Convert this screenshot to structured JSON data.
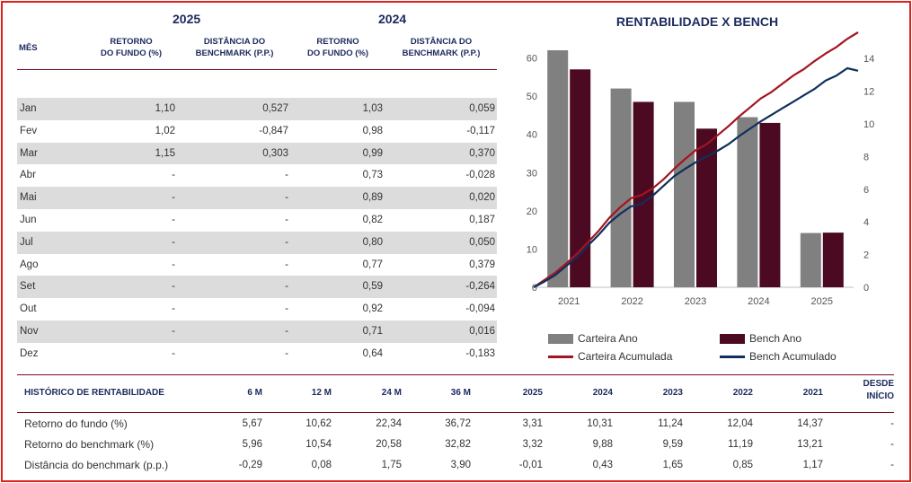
{
  "monthly_table": {
    "year_headers": [
      "2025",
      "2024"
    ],
    "col_headers": {
      "mes": "MÊS",
      "ret_1": [
        "RETORNO",
        "DO FUNDO (%)"
      ],
      "dist_1": [
        "DISTÂNCIA DO",
        "BENCHMARK (P.P.)"
      ],
      "ret_2": [
        "RETORNO",
        "DO FUNDO (%)"
      ],
      "dist_2": [
        "DISTÂNCIA DO",
        "BENCHMARK (P.P.)"
      ]
    },
    "rows": [
      {
        "month": "Jan",
        "r2025": "1,10",
        "d2025": "0,527",
        "r2024": "1,03",
        "d2024": "0,059"
      },
      {
        "month": "Fev",
        "r2025": "1,02",
        "d2025": "-0,847",
        "r2024": "0,98",
        "d2024": "-0,117"
      },
      {
        "month": "Mar",
        "r2025": "1,15",
        "d2025": "0,303",
        "r2024": "0,99",
        "d2024": "0,370"
      },
      {
        "month": "Abr",
        "r2025": "-",
        "d2025": "-",
        "r2024": "0,73",
        "d2024": "-0,028"
      },
      {
        "month": "Mai",
        "r2025": "-",
        "d2025": "-",
        "r2024": "0,89",
        "d2024": "0,020"
      },
      {
        "month": "Jun",
        "r2025": "-",
        "d2025": "-",
        "r2024": "0,82",
        "d2024": "0,187"
      },
      {
        "month": "Jul",
        "r2025": "-",
        "d2025": "-",
        "r2024": "0,80",
        "d2024": "0,050"
      },
      {
        "month": "Ago",
        "r2025": "-",
        "d2025": "-",
        "r2024": "0,77",
        "d2024": "0,379"
      },
      {
        "month": "Set",
        "r2025": "-",
        "d2025": "-",
        "r2024": "0,59",
        "d2024": "-0,264"
      },
      {
        "month": "Out",
        "r2025": "-",
        "d2025": "-",
        "r2024": "0,92",
        "d2024": "-0,094"
      },
      {
        "month": "Nov",
        "r2025": "-",
        "d2025": "-",
        "r2024": "0,71",
        "d2024": "0,016"
      },
      {
        "month": "Dez",
        "r2025": "-",
        "d2025": "-",
        "r2024": "0,64",
        "d2024": "-0,183"
      }
    ]
  },
  "chart_data": {
    "type": "bar",
    "title": "RENTABILIDADE X BENCH",
    "categories": [
      "2021",
      "2022",
      "2023",
      "2024",
      "2025"
    ],
    "y_left": {
      "ticks": [
        0,
        10,
        20,
        30,
        40,
        50,
        60
      ],
      "range": [
        0,
        62
      ]
    },
    "y_right": {
      "ticks": [
        0,
        2,
        4,
        6,
        8,
        10,
        12,
        14
      ],
      "range": [
        0,
        14.5
      ]
    },
    "series": [
      {
        "name": "Carteira Ano",
        "type": "bar",
        "axis": "left",
        "color": "#808080",
        "values": [
          62,
          52,
          48.5,
          44.5,
          14.2
        ]
      },
      {
        "name": "Bench Ano",
        "type": "bar",
        "axis": "left",
        "color": "#4b0a22",
        "values": [
          57,
          48.5,
          41.5,
          43,
          14.3
        ]
      },
      {
        "name": "Carteira Acumulada",
        "type": "line",
        "axis": "right",
        "color": "#a31421",
        "x": [
          0,
          0.5,
          1,
          1.5,
          2,
          2.5,
          3,
          3.5,
          4,
          4.5,
          5,
          5.5,
          6,
          6.5,
          7,
          7.5,
          8,
          8.5,
          9,
          9.5,
          10,
          10.5,
          11,
          11.5,
          12,
          12.5,
          13,
          13.5,
          14,
          14.5,
          15
        ],
        "values": [
          0,
          0.45,
          0.9,
          1.45,
          2.05,
          2.75,
          3.45,
          4.25,
          4.9,
          5.45,
          5.65,
          6.05,
          6.6,
          7.25,
          7.85,
          8.4,
          8.75,
          9.3,
          9.85,
          10.45,
          11.0,
          11.55,
          11.95,
          12.45,
          12.95,
          13.35,
          13.85,
          14.3,
          14.7,
          15.2,
          15.6
        ]
      },
      {
        "name": "Bench Acumulado",
        "type": "line",
        "axis": "right",
        "color": "#0f2f5c",
        "x": [
          0,
          0.5,
          1,
          1.5,
          2,
          2.5,
          3,
          3.5,
          4,
          4.5,
          5,
          5.5,
          6,
          6.5,
          7,
          7.5,
          8,
          8.5,
          9,
          9.5,
          10,
          10.5,
          11,
          11.5,
          12,
          12.5,
          13,
          13.5,
          14,
          14.5,
          15
        ],
        "values": [
          0,
          0.35,
          0.75,
          1.3,
          1.85,
          2.55,
          3.2,
          3.95,
          4.5,
          4.95,
          5.1,
          5.6,
          6.2,
          6.8,
          7.25,
          7.65,
          8.0,
          8.35,
          8.75,
          9.25,
          9.7,
          10.15,
          10.55,
          10.95,
          11.35,
          11.75,
          12.15,
          12.65,
          12.95,
          13.4,
          13.25
        ]
      }
    ],
    "x_positions_note_units": "bar categories",
    "legend_position": "bottom",
    "grid": false
  },
  "history_table": {
    "title": "HISTÓRICO DE RENTABILIDADE",
    "columns": [
      "6 M",
      "12 M",
      "24 M",
      "36 M",
      "2025",
      "2024",
      "2023",
      "2022",
      "2021"
    ],
    "desde": [
      "DESDE",
      "INÍCIO"
    ],
    "rows": [
      {
        "label": "Retorno do fundo (%)",
        "values": [
          "5,67",
          "10,62",
          "22,34",
          "36,72",
          "3,31",
          "10,31",
          "11,24",
          "12,04",
          "14,37",
          "-"
        ]
      },
      {
        "label": "Retorno do benchmark (%)",
        "values": [
          "5,96",
          "10,54",
          "20,58",
          "32,82",
          "3,32",
          "9,88",
          "9,59",
          "11,19",
          "13,21",
          "-"
        ]
      },
      {
        "label": "Distância do benchmark (p.p.)",
        "values": [
          "-0,29",
          "0,08",
          "1,75",
          "3,90",
          "-0,01",
          "0,43",
          "1,65",
          "0,85",
          "1,17",
          "-"
        ]
      }
    ]
  },
  "colors": {
    "frame": "#e0201e",
    "header_text": "#1c2a5e",
    "divider": "#7a0b1f",
    "row_shade": "#dcdcdc"
  }
}
